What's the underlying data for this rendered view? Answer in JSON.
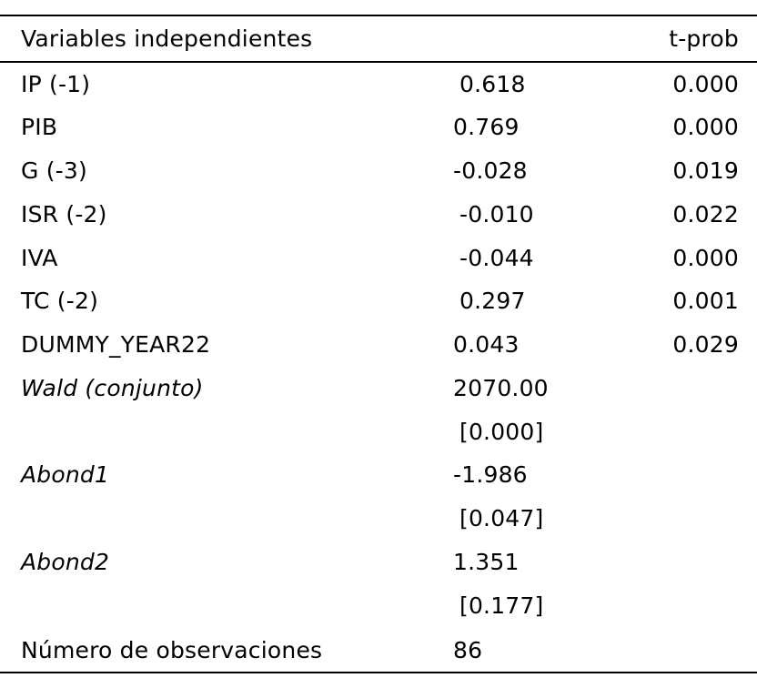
{
  "header": {
    "variables_label": "Variables independientes",
    "tprob_label": "t-prob"
  },
  "rows": [
    {
      "label": "IP (-1)",
      "coef": "0.618",
      "tprob": "0.000"
    },
    {
      "label": "PIB",
      "coef": "0.769",
      "tprob": "0.000"
    },
    {
      "label": "G (-3)",
      "coef": "-0.028",
      "tprob": "0.019"
    },
    {
      "label": "ISR (-2)",
      "coef": "-0.010",
      "tprob": "0.022"
    },
    {
      "label": "IVA",
      "coef": "-0.044",
      "tprob": "0.000"
    },
    {
      "label": "TC (-2)",
      "coef": "0.297",
      "tprob": "0.001"
    },
    {
      "label": "DUMMY_YEAR22",
      "coef": "0.043",
      "tprob": "0.029"
    }
  ],
  "tests": {
    "wald": {
      "label": "Wald (conjunto)",
      "value": "2070.00",
      "pvalue": "[0.000]"
    },
    "abond1": {
      "label": "Abond1",
      "value": "-1.986",
      "pvalue": "[0.047]"
    },
    "abond2": {
      "label": "Abond2",
      "value": "1.351",
      "pvalue": "[0.177]"
    }
  },
  "observations": {
    "label": "Número de observaciones",
    "value": "86"
  }
}
